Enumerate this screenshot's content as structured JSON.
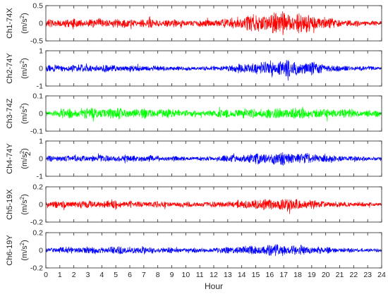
{
  "chart_data": [
    {
      "type": "line",
      "channel_label": "Ch1-74X",
      "unit_label": "(m/s",
      "unit_sup": "2",
      "unit_close": ")",
      "color": "#ff0000",
      "yticks": [
        -0.5,
        0,
        0.5
      ],
      "ytick_labels": [
        "-0.5",
        "0",
        "0.5"
      ],
      "ylim": [
        -0.5,
        0.5
      ],
      "envelope": {
        "hours": [
          0,
          2,
          5,
          8,
          11,
          13,
          15,
          17,
          19,
          21,
          24
        ],
        "amplitude": [
          0.14,
          0.14,
          0.15,
          0.13,
          0.1,
          0.16,
          0.3,
          0.38,
          0.3,
          0.12,
          0.08
        ]
      }
    },
    {
      "type": "line",
      "channel_label": "Ch2-74Y",
      "unit_label": "(m/s",
      "unit_sup": "2",
      "unit_close": ")",
      "color": "#0000ff",
      "yticks": [
        -1,
        0,
        1
      ],
      "ytick_labels": [
        "-1",
        "0",
        "1"
      ],
      "ylim": [
        -1,
        1
      ],
      "envelope": {
        "hours": [
          0,
          2,
          5,
          8,
          11,
          13,
          15,
          17,
          19,
          21,
          24
        ],
        "amplitude": [
          0.22,
          0.25,
          0.22,
          0.18,
          0.12,
          0.2,
          0.45,
          0.55,
          0.42,
          0.18,
          0.12
        ]
      }
    },
    {
      "type": "line",
      "channel_label": "Ch3-74Z",
      "unit_label": "(m/s",
      "unit_sup": "2",
      "unit_close": ")",
      "color": "#00ff00",
      "yticks": [
        -0.1,
        0,
        0.1
      ],
      "ytick_labels": [
        "-0.1",
        "0",
        "0.1"
      ],
      "ylim": [
        -0.1,
        0.1
      ],
      "envelope": {
        "hours": [
          0,
          2,
          5,
          8,
          11,
          13,
          15,
          17,
          19,
          21,
          24
        ],
        "amplitude": [
          0.02,
          0.035,
          0.035,
          0.03,
          0.02,
          0.028,
          0.032,
          0.035,
          0.033,
          0.03,
          0.02
        ]
      }
    },
    {
      "type": "line",
      "channel_label": "Ch4-74Y",
      "unit_label": "(m/s",
      "unit_sup": "2",
      "unit_close": ")",
      "color": "#0000ff",
      "yticks": [
        -1,
        0,
        1
      ],
      "ytick_labels": [
        "-1",
        "0",
        "1"
      ],
      "ylim": [
        -1,
        1
      ],
      "envelope": {
        "hours": [
          0,
          2,
          5,
          8,
          11,
          13,
          15,
          17,
          19,
          21,
          24
        ],
        "amplitude": [
          0.18,
          0.2,
          0.25,
          0.2,
          0.12,
          0.22,
          0.35,
          0.42,
          0.35,
          0.2,
          0.12
        ]
      }
    },
    {
      "type": "line",
      "channel_label": "Ch5-19X",
      "unit_label": "(m/s",
      "unit_sup": "2",
      "unit_close": ")",
      "color": "#ff0000",
      "yticks": [
        -0.2,
        0,
        0.2
      ],
      "ytick_labels": [
        "-0.2",
        "0",
        "0.2"
      ],
      "ylim": [
        -0.2,
        0.2
      ],
      "envelope": {
        "hours": [
          0,
          2,
          5,
          8,
          11,
          13,
          15,
          17,
          19,
          21,
          24
        ],
        "amplitude": [
          0.04,
          0.05,
          0.05,
          0.04,
          0.03,
          0.045,
          0.07,
          0.09,
          0.06,
          0.035,
          0.025
        ]
      }
    },
    {
      "type": "line",
      "channel_label": "Ch6-19Y",
      "unit_label": "(m/s",
      "unit_sup": "2",
      "unit_close": ")",
      "color": "#0000ff",
      "yticks": [
        -0.2,
        0,
        0.2
      ],
      "ytick_labels": [
        "-0.2",
        "0",
        "0.2"
      ],
      "ylim": [
        -0.2,
        0.2
      ],
      "envelope": {
        "hours": [
          0,
          2,
          5,
          8,
          11,
          13,
          15,
          17,
          19,
          21,
          24
        ],
        "amplitude": [
          0.035,
          0.045,
          0.05,
          0.04,
          0.03,
          0.045,
          0.07,
          0.075,
          0.055,
          0.03,
          0.02
        ]
      }
    }
  ],
  "x_axis": {
    "label": "Hour",
    "xlim": [
      0,
      24
    ],
    "ticks": [
      0,
      1,
      2,
      3,
      4,
      5,
      6,
      7,
      8,
      9,
      10,
      11,
      12,
      13,
      14,
      15,
      16,
      17,
      18,
      19,
      20,
      21,
      22,
      23,
      24
    ],
    "tick_labels": [
      "0",
      "1",
      "2",
      "3",
      "4",
      "5",
      "6",
      "7",
      "8",
      "9",
      "10",
      "11",
      "12",
      "13",
      "14",
      "15",
      "16",
      "17",
      "18",
      "19",
      "20",
      "21",
      "22",
      "23",
      "24"
    ]
  },
  "stray_label": "2"
}
